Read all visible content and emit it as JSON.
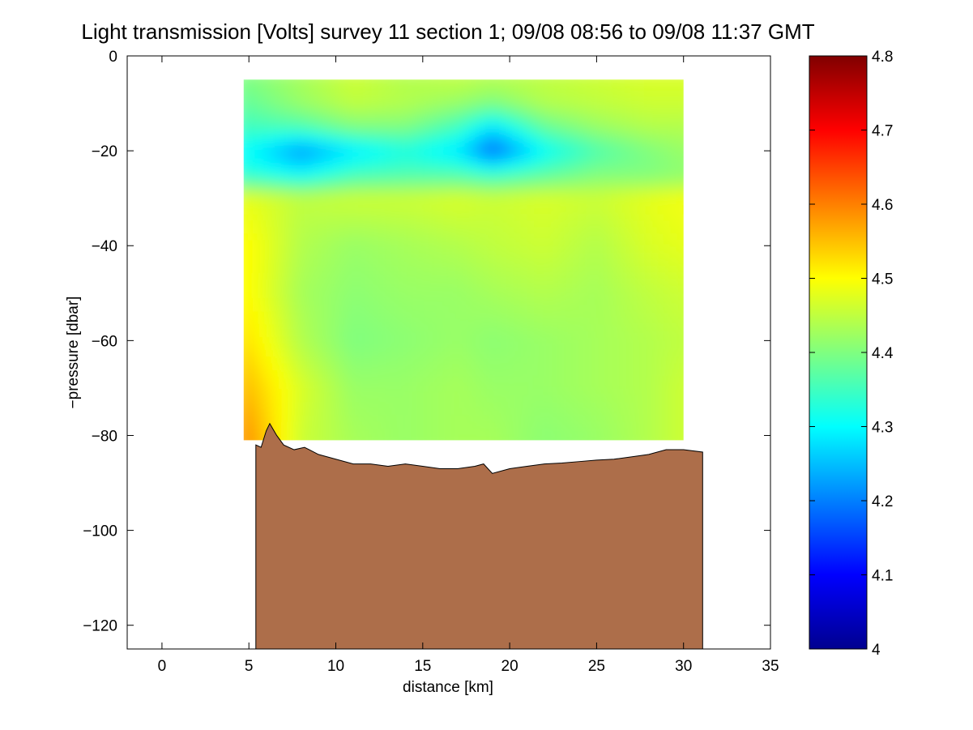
{
  "chart_data": {
    "type": "heatmap",
    "title": "Light transmission [Volts] survey 11 section 1; 09/08 08:56 to 09/08 11:37 GMT",
    "xlabel": "distance [km]",
    "ylabel": "−pressure [dbar]",
    "xlim": [
      -2,
      35
    ],
    "ylim": [
      -125,
      0
    ],
    "xticks": [
      0,
      5,
      10,
      15,
      20,
      25,
      30,
      35
    ],
    "xtick_labels": [
      "0",
      "5",
      "10",
      "15",
      "20",
      "25",
      "30",
      "35"
    ],
    "yticks": [
      0,
      -20,
      -40,
      -60,
      -80,
      -100,
      -120
    ],
    "ytick_labels": [
      "0",
      "−20",
      "−40",
      "−60",
      "−80",
      "−100",
      "−120"
    ],
    "colorbar": {
      "colormap": "jet",
      "range": [
        4,
        4.8
      ],
      "ticks": [
        4,
        4.1,
        4.2,
        4.3,
        4.4,
        4.5,
        4.6,
        4.7,
        4.8
      ],
      "tick_labels": [
        "4",
        "4.1",
        "4.2",
        "4.3",
        "4.4",
        "4.5",
        "4.6",
        "4.7",
        "4.8"
      ]
    },
    "field": {
      "description_of_values": "approximate light transmission values [Volts] at sampled distance/pressure points",
      "x": [
        5,
        8,
        11,
        14,
        17,
        19,
        22,
        25,
        28,
        30
      ],
      "y": [
        -5,
        -10,
        -15,
        -20,
        -25,
        -30,
        -40,
        -50,
        -60,
        -70,
        -80
      ],
      "values": [
        [
          4.4,
          4.43,
          4.46,
          4.44,
          4.45,
          4.44,
          4.45,
          4.46,
          4.47,
          4.47
        ],
        [
          4.38,
          4.42,
          4.45,
          4.44,
          4.42,
          4.4,
          4.44,
          4.45,
          4.46,
          4.46
        ],
        [
          4.35,
          4.36,
          4.4,
          4.4,
          4.35,
          4.28,
          4.38,
          4.42,
          4.44,
          4.44
        ],
        [
          4.3,
          4.22,
          4.28,
          4.32,
          4.28,
          4.18,
          4.3,
          4.36,
          4.4,
          4.42
        ],
        [
          4.33,
          4.3,
          4.35,
          4.36,
          4.36,
          4.34,
          4.37,
          4.4,
          4.4,
          4.41
        ],
        [
          4.48,
          4.45,
          4.46,
          4.46,
          4.47,
          4.46,
          4.47,
          4.46,
          4.48,
          4.49
        ],
        [
          4.5,
          4.44,
          4.42,
          4.43,
          4.44,
          4.45,
          4.46,
          4.44,
          4.47,
          4.48
        ],
        [
          4.5,
          4.43,
          4.41,
          4.42,
          4.42,
          4.43,
          4.44,
          4.43,
          4.45,
          4.46
        ],
        [
          4.52,
          4.44,
          4.4,
          4.41,
          4.42,
          4.41,
          4.42,
          4.43,
          4.44,
          4.45
        ],
        [
          4.55,
          4.47,
          4.42,
          4.42,
          4.43,
          4.42,
          4.42,
          4.43,
          4.44,
          4.46
        ],
        [
          4.58,
          4.46,
          4.43,
          4.42,
          4.43,
          4.43,
          4.41,
          4.42,
          4.44,
          4.46
        ]
      ],
      "data_extent_x": [
        4.7,
        30.0
      ],
      "data_extent_y": [
        -81,
        -5
      ]
    },
    "bathymetry": {
      "color": "#AD6E4A",
      "x": [
        5.4,
        5.7,
        6.0,
        6.2,
        6.6,
        7.0,
        7.6,
        8.2,
        9.0,
        10.0,
        11.0,
        12.0,
        13.0,
        14.0,
        15.0,
        16.0,
        17.0,
        18.0,
        18.5,
        19.0,
        20.0,
        21.0,
        22.0,
        23.0,
        24.0,
        25.0,
        26.0,
        27.0,
        28.0,
        29.0,
        30.0,
        31.1
      ],
      "y": [
        -82,
        -82.5,
        -79,
        -77.5,
        -80,
        -82,
        -83,
        -82.5,
        -84,
        -85,
        -86,
        -86,
        -86.5,
        -86,
        -86.5,
        -87,
        -87,
        -86.5,
        -86,
        -88,
        -87,
        -86.5,
        -86,
        -85.8,
        -85.5,
        -85.2,
        -85,
        -84.5,
        -84,
        -83,
        -83,
        -83.5
      ]
    }
  }
}
